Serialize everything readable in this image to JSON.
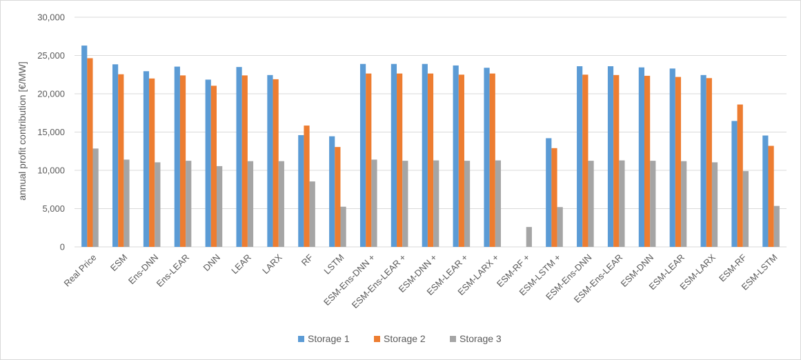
{
  "chart_data": {
    "type": "bar",
    "title": "",
    "xlabel": "",
    "ylabel": "annual profit contribution [€/MW]",
    "ylim": [
      0,
      30000
    ],
    "yticks": [
      "0",
      "5,000",
      "10,000",
      "15,000",
      "20,000",
      "25,000",
      "30,000"
    ],
    "grid": true,
    "legend_position": "bottom",
    "categories": [
      "Real Price",
      "ESM",
      "Ens-DNN",
      "Ens-LEAR",
      "DNN",
      "LEAR",
      "LARX",
      "RF",
      "LSTM",
      "ESM-Ens-DNN +",
      "ESM-Ens-LEAR +",
      "ESM-DNN +",
      "ESM-LEAR +",
      "ESM-LARX +",
      "ESM-RF +",
      "ESM-LSTM +",
      "ESM-Ens-DNN",
      "ESM-Ens-LEAR",
      "ESM-DNN",
      "ESM-LEAR",
      "ESM-LARX",
      "ESM-RF",
      "ESM-LSTM"
    ],
    "series": [
      {
        "name": "Storage 1",
        "color": "#5b9bd5",
        "values": [
          26300,
          23850,
          22950,
          23550,
          21850,
          23500,
          22450,
          14600,
          14450,
          23900,
          23900,
          23900,
          23700,
          23400,
          0,
          14200,
          23600,
          23600,
          23450,
          23300,
          22450,
          16450,
          14550
        ]
      },
      {
        "name": "Storage 2",
        "color": "#ed7d31",
        "values": [
          24650,
          22550,
          22000,
          22400,
          21050,
          22400,
          21900,
          15850,
          13050,
          22650,
          22650,
          22650,
          22500,
          22650,
          0,
          12900,
          22500,
          22450,
          22350,
          22200,
          22050,
          18600,
          13200
        ]
      },
      {
        "name": "Storage 3",
        "color": "#a5a5a5",
        "values": [
          12850,
          11400,
          11050,
          11250,
          10550,
          11200,
          11200,
          8550,
          5250,
          11400,
          11250,
          11300,
          11250,
          11300,
          2600,
          5200,
          11250,
          11300,
          11250,
          11200,
          11050,
          9900,
          5350
        ]
      }
    ]
  }
}
